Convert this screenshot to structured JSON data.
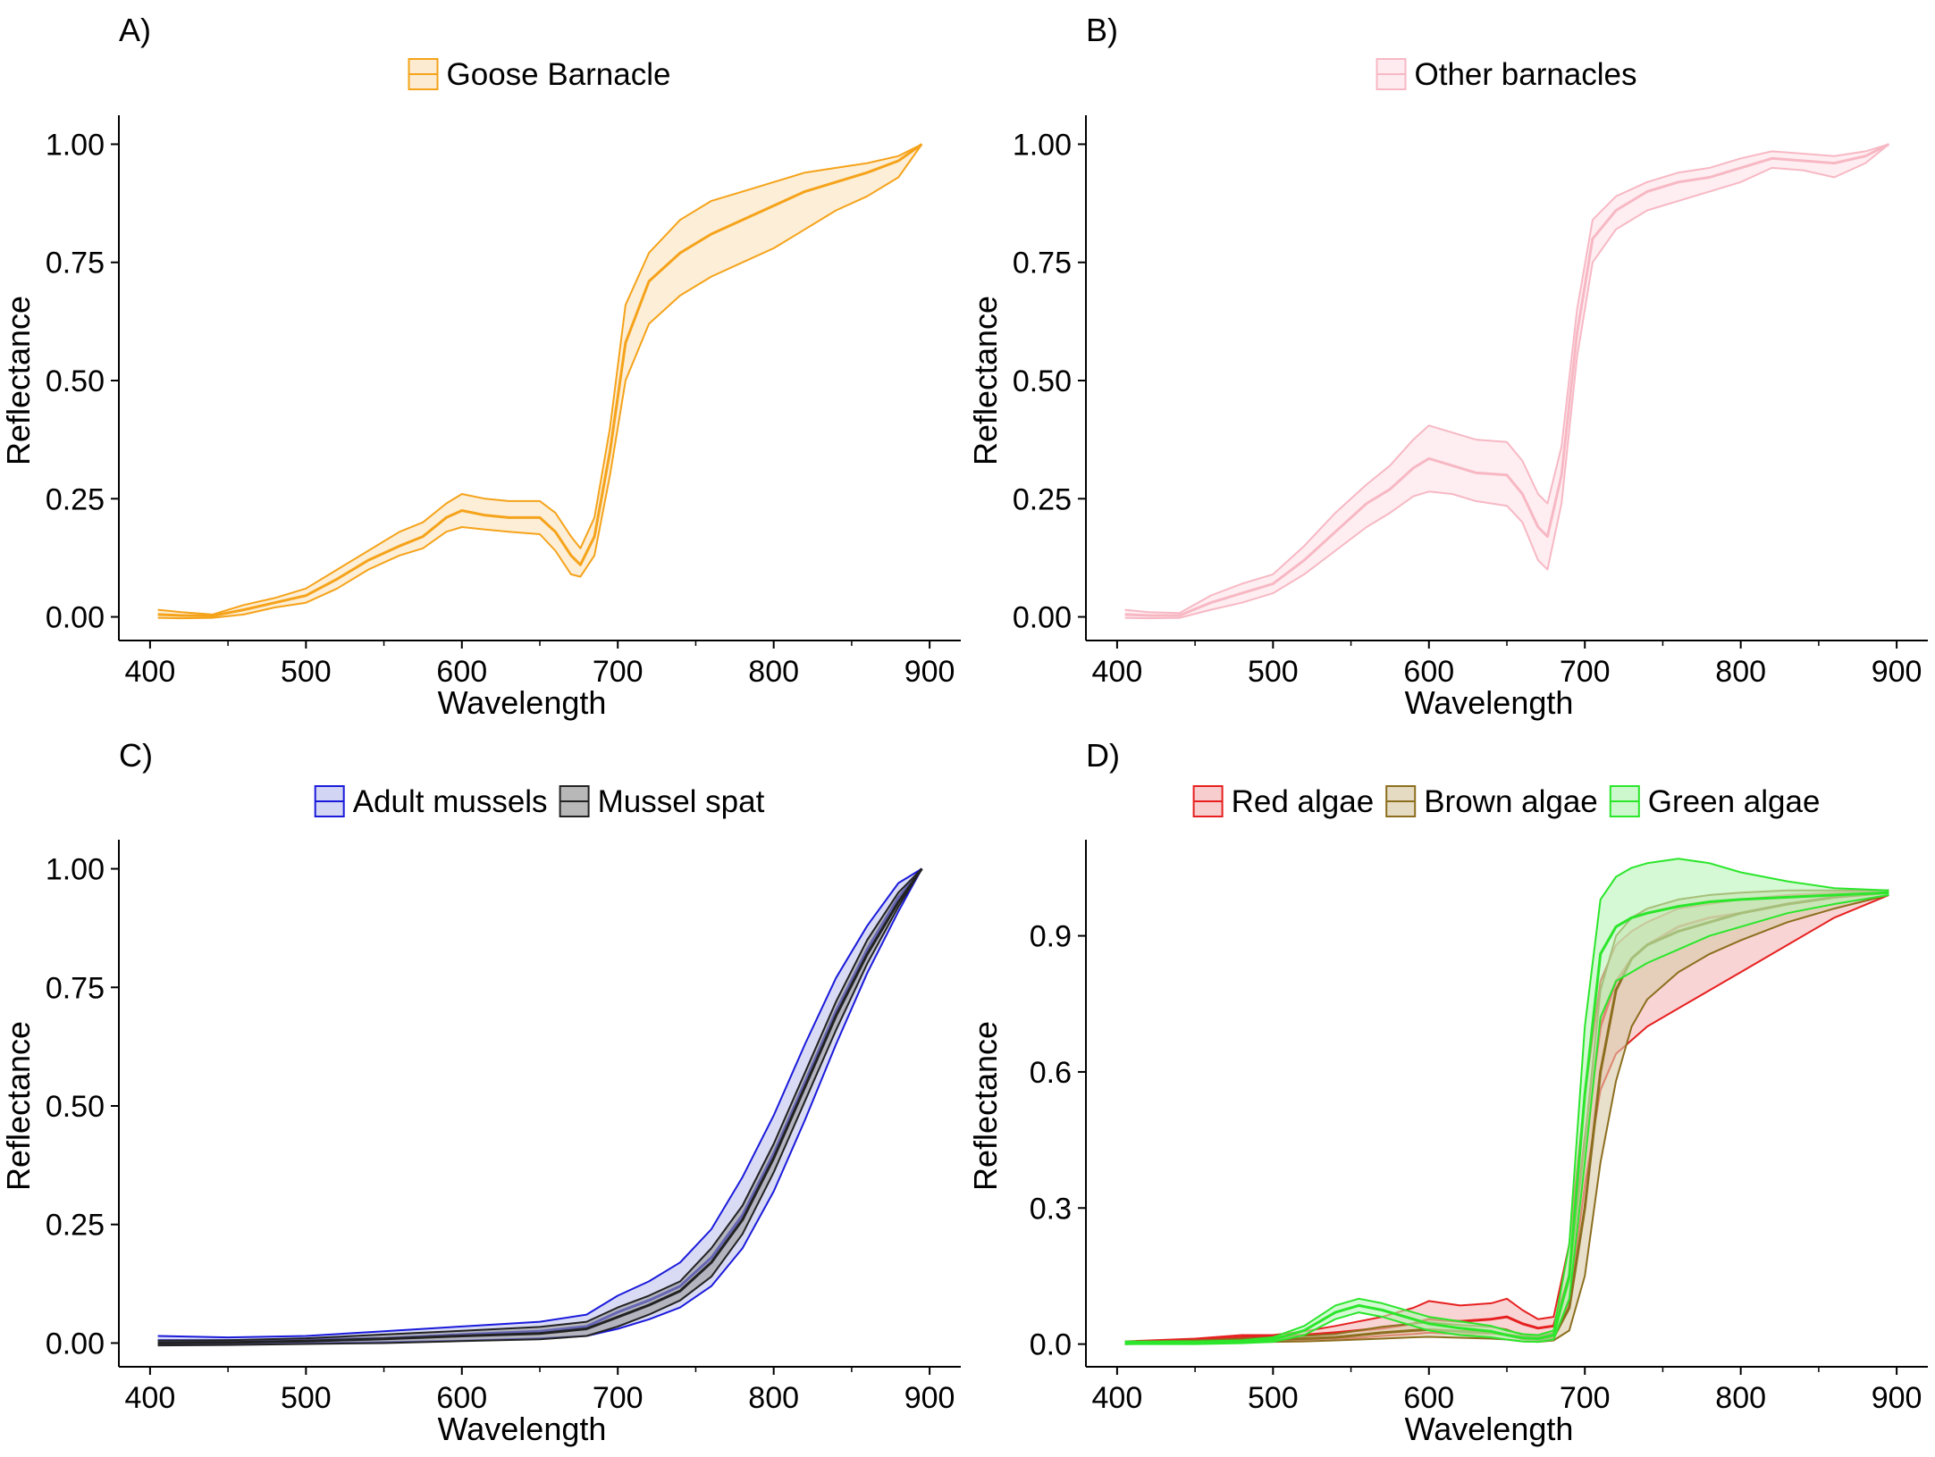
{
  "figure": {
    "panels": [
      "A)",
      "B)",
      "C)",
      "D)"
    ]
  },
  "chart_data": [
    {
      "panel": "A)",
      "type": "area",
      "legend_placement": "top",
      "xlabel": "Wavelength",
      "ylabel": "Reflectance",
      "xlim": [
        380,
        920
      ],
      "ylim": [
        -0.05,
        1.05
      ],
      "xticks": [
        400,
        500,
        600,
        700,
        800,
        900
      ],
      "yticks": [
        0.0,
        0.25,
        0.5,
        0.75,
        1.0
      ],
      "ytick_labels": [
        "0.00",
        "0.25",
        "0.50",
        "0.75",
        "1.00"
      ],
      "grid": false,
      "x": [
        405,
        420,
        440,
        460,
        480,
        500,
        520,
        540,
        560,
        575,
        590,
        600,
        615,
        630,
        650,
        660,
        670,
        676,
        685,
        695,
        705,
        720,
        740,
        760,
        780,
        800,
        820,
        840,
        860,
        880,
        895
      ],
      "series": [
        {
          "name": "Goose Barnacle",
          "color": "#F5A31A",
          "fill": "#FBE3BC",
          "mean": [
            0.005,
            0.003,
            0.002,
            0.015,
            0.03,
            0.045,
            0.08,
            0.12,
            0.15,
            0.17,
            0.21,
            0.225,
            0.215,
            0.21,
            0.21,
            0.18,
            0.13,
            0.11,
            0.17,
            0.35,
            0.58,
            0.71,
            0.77,
            0.81,
            0.84,
            0.87,
            0.9,
            0.92,
            0.94,
            0.965,
            1.0
          ],
          "lower": [
            -0.002,
            -0.003,
            -0.002,
            0.005,
            0.02,
            0.03,
            0.06,
            0.1,
            0.13,
            0.145,
            0.18,
            0.19,
            0.185,
            0.18,
            0.175,
            0.14,
            0.09,
            0.085,
            0.13,
            0.3,
            0.5,
            0.62,
            0.68,
            0.72,
            0.75,
            0.78,
            0.82,
            0.86,
            0.89,
            0.93,
            1.0
          ],
          "upper": [
            0.015,
            0.01,
            0.005,
            0.025,
            0.04,
            0.06,
            0.1,
            0.14,
            0.18,
            0.2,
            0.24,
            0.26,
            0.25,
            0.245,
            0.245,
            0.22,
            0.17,
            0.145,
            0.21,
            0.4,
            0.66,
            0.77,
            0.84,
            0.88,
            0.9,
            0.92,
            0.94,
            0.95,
            0.96,
            0.975,
            1.0
          ]
        }
      ]
    },
    {
      "panel": "B)",
      "type": "area",
      "legend_placement": "top",
      "xlabel": "Wavelength",
      "ylabel": "Reflectance",
      "xlim": [
        380,
        920
      ],
      "ylim": [
        -0.05,
        1.05
      ],
      "xticks": [
        400,
        500,
        600,
        700,
        800,
        900
      ],
      "yticks": [
        0.0,
        0.25,
        0.5,
        0.75,
        1.0
      ],
      "ytick_labels": [
        "0.00",
        "0.25",
        "0.50",
        "0.75",
        "1.00"
      ],
      "grid": false,
      "x": [
        405,
        420,
        440,
        460,
        480,
        500,
        520,
        540,
        560,
        575,
        590,
        600,
        615,
        630,
        650,
        660,
        670,
        676,
        685,
        695,
        705,
        720,
        740,
        760,
        780,
        800,
        820,
        840,
        860,
        880,
        895
      ],
      "series": [
        {
          "name": "Other barnacles",
          "color": "#F7B8C4",
          "fill": "#FDE3E8",
          "mean": [
            0.005,
            0.003,
            0.003,
            0.03,
            0.05,
            0.07,
            0.12,
            0.18,
            0.24,
            0.27,
            0.315,
            0.335,
            0.32,
            0.305,
            0.3,
            0.26,
            0.19,
            0.17,
            0.3,
            0.6,
            0.8,
            0.86,
            0.9,
            0.92,
            0.93,
            0.95,
            0.97,
            0.965,
            0.96,
            0.975,
            1.0
          ],
          "lower": [
            -0.002,
            -0.003,
            -0.002,
            0.015,
            0.03,
            0.05,
            0.09,
            0.14,
            0.19,
            0.22,
            0.255,
            0.265,
            0.26,
            0.245,
            0.235,
            0.2,
            0.12,
            0.1,
            0.24,
            0.55,
            0.75,
            0.82,
            0.86,
            0.88,
            0.9,
            0.92,
            0.95,
            0.945,
            0.93,
            0.96,
            1.0
          ],
          "upper": [
            0.015,
            0.01,
            0.008,
            0.045,
            0.07,
            0.09,
            0.15,
            0.22,
            0.28,
            0.32,
            0.375,
            0.405,
            0.39,
            0.375,
            0.37,
            0.33,
            0.26,
            0.24,
            0.36,
            0.65,
            0.84,
            0.89,
            0.92,
            0.94,
            0.95,
            0.97,
            0.985,
            0.98,
            0.975,
            0.985,
            1.0
          ]
        }
      ]
    },
    {
      "panel": "C)",
      "type": "area",
      "legend_placement": "top",
      "xlabel": "Wavelength",
      "ylabel": "Reflectance",
      "xlim": [
        380,
        920
      ],
      "ylim": [
        -0.05,
        1.05
      ],
      "xticks": [
        400,
        500,
        600,
        700,
        800,
        900
      ],
      "yticks": [
        0.0,
        0.25,
        0.5,
        0.75,
        1.0
      ],
      "ytick_labels": [
        "0.00",
        "0.25",
        "0.50",
        "0.75",
        "1.00"
      ],
      "grid": false,
      "x": [
        405,
        450,
        500,
        550,
        600,
        650,
        680,
        700,
        720,
        740,
        760,
        780,
        800,
        820,
        840,
        860,
        880,
        895
      ],
      "series": [
        {
          "name": "Adult mussels",
          "color": "#1A1ADB",
          "fill": "#BFC3EF",
          "mean": [
            0.005,
            0.005,
            0.007,
            0.01,
            0.018,
            0.025,
            0.035,
            0.065,
            0.09,
            0.12,
            0.18,
            0.27,
            0.4,
            0.55,
            0.7,
            0.83,
            0.94,
            1.0
          ],
          "lower": [
            -0.003,
            -0.002,
            0.0,
            0.002,
            0.005,
            0.01,
            0.015,
            0.03,
            0.05,
            0.075,
            0.12,
            0.2,
            0.32,
            0.47,
            0.63,
            0.78,
            0.91,
            1.0
          ],
          "upper": [
            0.015,
            0.012,
            0.015,
            0.025,
            0.035,
            0.045,
            0.06,
            0.1,
            0.13,
            0.17,
            0.24,
            0.35,
            0.48,
            0.63,
            0.77,
            0.88,
            0.97,
            1.0
          ]
        },
        {
          "name": "Mussel spat",
          "color": "#222222",
          "fill": "#9A9A9A",
          "mean": [
            0.0,
            0.001,
            0.004,
            0.009,
            0.015,
            0.02,
            0.03,
            0.055,
            0.08,
            0.11,
            0.17,
            0.26,
            0.39,
            0.54,
            0.69,
            0.82,
            0.93,
            1.0
          ],
          "lower": [
            -0.005,
            -0.004,
            -0.002,
            0.0,
            0.004,
            0.008,
            0.015,
            0.035,
            0.06,
            0.09,
            0.14,
            0.23,
            0.36,
            0.51,
            0.66,
            0.8,
            0.92,
            1.0
          ],
          "upper": [
            0.005,
            0.006,
            0.01,
            0.018,
            0.026,
            0.034,
            0.045,
            0.075,
            0.1,
            0.13,
            0.2,
            0.29,
            0.42,
            0.57,
            0.72,
            0.85,
            0.95,
            1.0
          ]
        }
      ]
    },
    {
      "panel": "D)",
      "type": "area",
      "legend_placement": "top",
      "xlabel": "Wavelength",
      "ylabel": "Reflectance",
      "xlim": [
        380,
        920
      ],
      "ylim": [
        -0.05,
        1.1
      ],
      "xticks": [
        400,
        500,
        600,
        700,
        800,
        900
      ],
      "yticks": [
        0.0,
        0.3,
        0.6,
        0.9
      ],
      "ytick_labels": [
        "0.0",
        "0.3",
        "0.6",
        "0.9"
      ],
      "grid": false,
      "x": [
        405,
        450,
        480,
        500,
        520,
        540,
        555,
        570,
        590,
        600,
        620,
        640,
        650,
        660,
        670,
        680,
        690,
        700,
        710,
        720,
        730,
        740,
        760,
        780,
        800,
        830,
        860,
        895
      ],
      "series": [
        {
          "name": "Red algae",
          "color": "#E62020",
          "fill": "#F5B8B8",
          "mean": [
            0.003,
            0.008,
            0.015,
            0.015,
            0.02,
            0.025,
            0.03,
            0.035,
            0.045,
            0.055,
            0.05,
            0.055,
            0.06,
            0.045,
            0.035,
            0.04,
            0.15,
            0.45,
            0.7,
            0.8,
            0.85,
            0.88,
            0.92,
            0.94,
            0.95,
            0.97,
            0.985,
            0.995
          ],
          "lower": [
            0.0,
            0.003,
            0.008,
            0.008,
            0.01,
            0.012,
            0.014,
            0.018,
            0.022,
            0.025,
            0.022,
            0.022,
            0.022,
            0.018,
            0.015,
            0.02,
            0.09,
            0.35,
            0.56,
            0.64,
            0.67,
            0.7,
            0.74,
            0.78,
            0.82,
            0.88,
            0.94,
            0.99
          ],
          "upper": [
            0.006,
            0.012,
            0.02,
            0.02,
            0.028,
            0.04,
            0.05,
            0.06,
            0.08,
            0.095,
            0.085,
            0.09,
            0.1,
            0.075,
            0.055,
            0.06,
            0.22,
            0.55,
            0.8,
            0.88,
            0.91,
            0.93,
            0.96,
            0.97,
            0.98,
            0.99,
            0.995,
            1.0
          ]
        },
        {
          "name": "Brown algae",
          "color": "#8C6E1E",
          "fill": "#D9CCA8",
          "mean": [
            0.002,
            0.005,
            0.008,
            0.01,
            0.012,
            0.015,
            0.02,
            0.025,
            0.03,
            0.032,
            0.028,
            0.025,
            0.02,
            0.012,
            0.01,
            0.015,
            0.08,
            0.3,
            0.6,
            0.78,
            0.85,
            0.88,
            0.91,
            0.93,
            0.95,
            0.97,
            0.985,
            0.995
          ],
          "lower": [
            0.0,
            0.002,
            0.004,
            0.005,
            0.006,
            0.008,
            0.01,
            0.012,
            0.015,
            0.016,
            0.014,
            0.012,
            0.01,
            0.006,
            0.005,
            0.008,
            0.03,
            0.15,
            0.4,
            0.58,
            0.7,
            0.76,
            0.82,
            0.86,
            0.89,
            0.93,
            0.96,
            0.99
          ],
          "upper": [
            0.005,
            0.008,
            0.012,
            0.015,
            0.018,
            0.022,
            0.03,
            0.038,
            0.045,
            0.048,
            0.042,
            0.038,
            0.032,
            0.02,
            0.016,
            0.025,
            0.14,
            0.45,
            0.78,
            0.9,
            0.94,
            0.96,
            0.98,
            0.99,
            0.995,
            1.0,
            1.0,
            1.0
          ]
        },
        {
          "name": "Green algae",
          "color": "#2BE62B",
          "fill": "#B8F5B8",
          "mean": [
            0.003,
            0.003,
            0.005,
            0.01,
            0.03,
            0.07,
            0.085,
            0.075,
            0.055,
            0.045,
            0.035,
            0.028,
            0.02,
            0.014,
            0.012,
            0.02,
            0.15,
            0.55,
            0.86,
            0.92,
            0.94,
            0.95,
            0.965,
            0.975,
            0.98,
            0.985,
            0.99,
            0.995
          ],
          "lower": [
            0.0,
            0.0,
            0.002,
            0.005,
            0.02,
            0.055,
            0.07,
            0.06,
            0.04,
            0.03,
            0.02,
            0.015,
            0.01,
            0.006,
            0.005,
            0.01,
            0.1,
            0.4,
            0.72,
            0.8,
            0.82,
            0.84,
            0.87,
            0.9,
            0.92,
            0.95,
            0.97,
            0.99
          ],
          "upper": [
            0.006,
            0.006,
            0.008,
            0.015,
            0.04,
            0.085,
            0.1,
            0.09,
            0.07,
            0.06,
            0.05,
            0.04,
            0.03,
            0.022,
            0.02,
            0.03,
            0.22,
            0.7,
            0.98,
            1.03,
            1.05,
            1.06,
            1.07,
            1.06,
            1.04,
            1.02,
            1.005,
            1.0
          ]
        }
      ]
    }
  ]
}
